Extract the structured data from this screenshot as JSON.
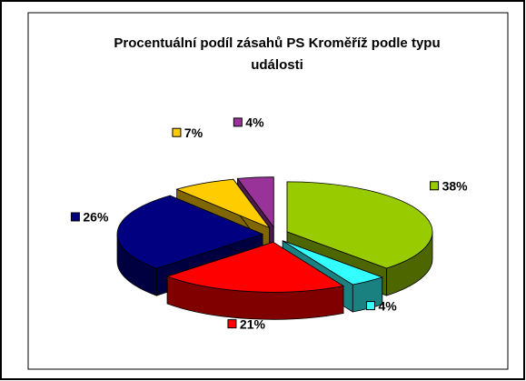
{
  "chart_data": {
    "type": "pie",
    "title": "Procentuální podíl zásahů PS Kroměříž podle typu události",
    "values": [
      38,
      4,
      21,
      26,
      7,
      4
    ],
    "value_labels": [
      "38%",
      "4%",
      "21%",
      "26%",
      "7%",
      "4%"
    ],
    "colors": [
      "#99cc00",
      "#33ffff",
      "#ff0000",
      "#000080",
      "#ffcc00",
      "#993399"
    ]
  }
}
